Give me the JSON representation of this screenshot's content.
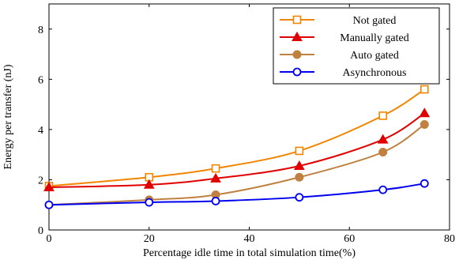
{
  "chart_data": {
    "type": "line",
    "xlabel": "Percentage idle time in total simulation time(%)",
    "ylabel": "Energy per transfer (nJ)",
    "xlim": [
      0,
      80
    ],
    "ylim": [
      0,
      9
    ],
    "xticks": [
      0,
      20,
      40,
      60,
      80
    ],
    "yticks": [
      0,
      2,
      4,
      6,
      8
    ],
    "grid": false,
    "legend_position": "top-right",
    "series": [
      {
        "name": "Not gated",
        "color": "#f28500",
        "marker": "square-open",
        "x": [
          0,
          20,
          33.3,
          50,
          66.7,
          75
        ],
        "y": [
          1.75,
          2.1,
          2.45,
          3.15,
          4.55,
          5.6
        ]
      },
      {
        "name": "Manually gated",
        "color": "#e00000",
        "marker": "triangle-filled",
        "x": [
          0,
          20,
          33.3,
          50,
          66.7,
          75
        ],
        "y": [
          1.7,
          1.8,
          2.05,
          2.55,
          3.6,
          4.65
        ]
      },
      {
        "name": "Auto gated",
        "color": "#bf8040",
        "marker": "circle-filled",
        "x": [
          0,
          20,
          33.3,
          50,
          66.7,
          75
        ],
        "y": [
          1.0,
          1.2,
          1.4,
          2.1,
          3.1,
          4.2
        ]
      },
      {
        "name": "Asynchronous",
        "color": "#0000ee",
        "marker": "circle-open",
        "x": [
          0,
          20,
          33.3,
          50,
          66.7,
          75
        ],
        "y": [
          1.0,
          1.1,
          1.15,
          1.3,
          1.6,
          1.85
        ]
      }
    ]
  }
}
